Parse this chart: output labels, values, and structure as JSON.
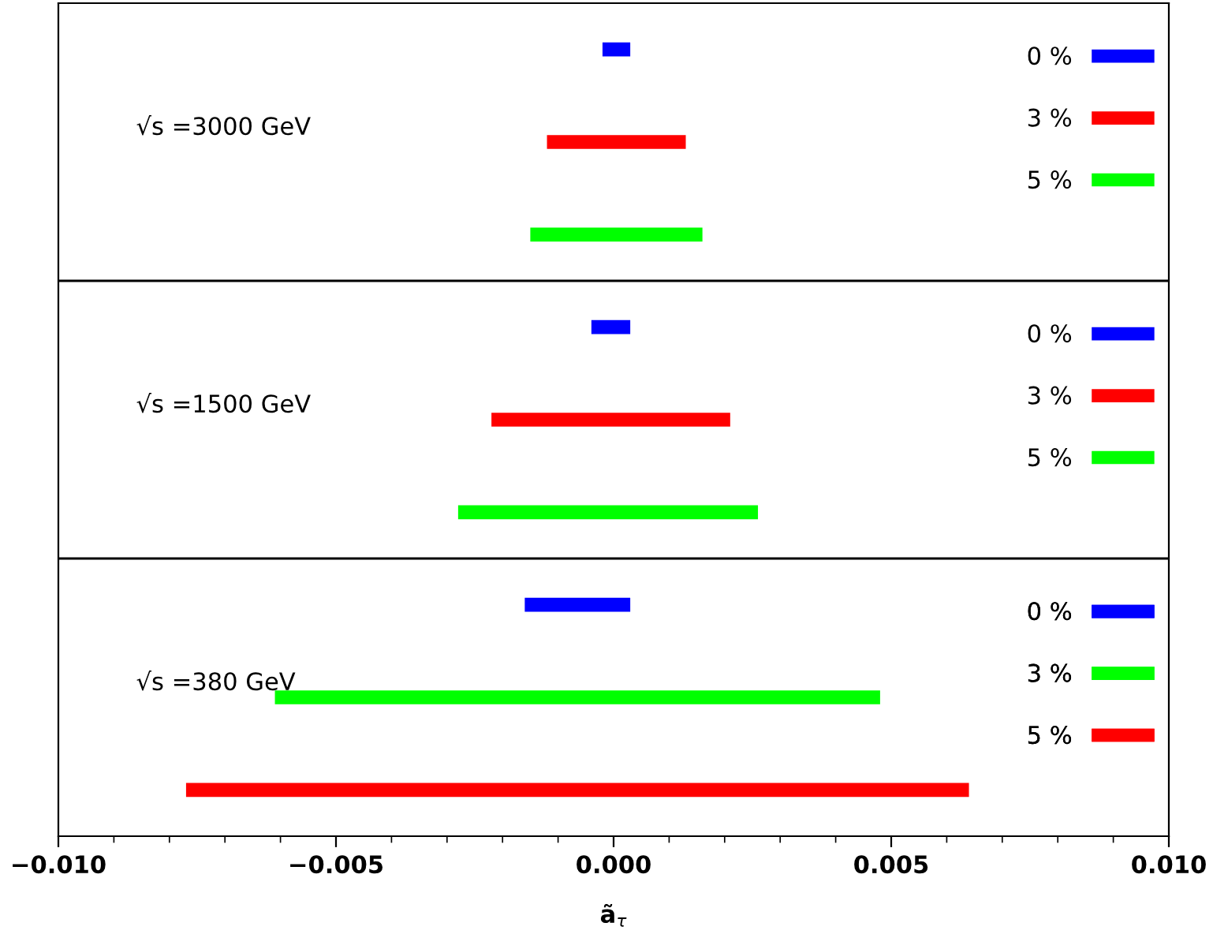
{
  "chart_data": {
    "type": "bar",
    "orientation": "horizontal",
    "categories": [
      null,
      null,
      null,
      null,
      null,
      null,
      null,
      null,
      null
    ],
    "annotations": [
      "√s =3000 GeV",
      "√s =1500 GeV",
      "√s =380 GeV"
    ],
    "legend": "right",
    "grid": "y",
    "xlabel": "ã$_{τ}$",
    "xlim": [
      -0.01,
      0.01
    ],
    "xticks": [
      {
        "value": -0.01,
        "label": "−0.010"
      },
      {
        "value": -0.009,
        "label": null
      },
      {
        "value": -0.008,
        "label": null
      },
      {
        "value": -0.007,
        "label": null
      },
      {
        "value": -0.006,
        "label": null
      },
      -0.005,
      {
        "value": -0.004,
        "label": null
      },
      {
        "value": -0.003,
        "label": null
      },
      {
        "value": -0.002,
        "label": null
      },
      {
        "value": -0.001,
        "label": null
      },
      {
        "value": 0,
        "label": "0.000"
      },
      {
        "value": 0.001,
        "label": null
      },
      {
        "value": 0.002,
        "label": null
      },
      {
        "value": 0.003,
        "label": null
      },
      {
        "value": 0.004,
        "label": null
      },
      0.005,
      {
        "value": 0.006,
        "label": null
      },
      {
        "value": 0.007,
        "label": null
      },
      {
        "value": 0.008,
        "label": null
      },
      {
        "value": 0.009,
        "label": null
      },
      {
        "value": 0.01,
        "label": "0.010"
      }
    ],
    "series": [
      {
        "name": "0 %",
        "color": "#0000ff",
        "values": [
          0.0005,
          null,
          null,
          0.0007,
          null,
          null,
          0.0019,
          null,
          null
        ],
        "base": [
          -0.0002,
          null,
          null,
          -0.0004,
          null,
          null,
          -0.0016,
          null,
          null
        ]
      },
      {
        "name": "3 %",
        "color": "#ff0000",
        "values": [
          null,
          0.0025,
          null,
          null,
          0.0043,
          null,
          null,
          null,
          null
        ],
        "base": [
          null,
          -0.0012,
          null,
          null,
          -0.0022,
          null,
          null,
          null,
          null
        ]
      },
      {
        "name": "5 %",
        "color": "#00ff00",
        "values": [
          null,
          null,
          0.0031,
          null,
          null,
          0.0054,
          null,
          null,
          null
        ],
        "base": [
          null,
          null,
          -0.0015,
          null,
          null,
          -0.0028,
          null,
          null,
          null
        ]
      },
      {
        "name": "3 %",
        "color": "#00ff00",
        "values": [
          null,
          null,
          null,
          null,
          null,
          null,
          null,
          0.0109,
          null
        ],
        "base": [
          null,
          null,
          null,
          null,
          null,
          null,
          null,
          -0.0061,
          null
        ]
      },
      {
        "name": "5 %",
        "color": "#ff0000",
        "values": [
          null,
          null,
          null,
          null,
          null,
          null,
          null,
          null,
          0.0141
        ],
        "base": [
          null,
          null,
          null,
          null,
          null,
          null,
          null,
          null,
          -0.0077
        ]
      }
    ]
  }
}
